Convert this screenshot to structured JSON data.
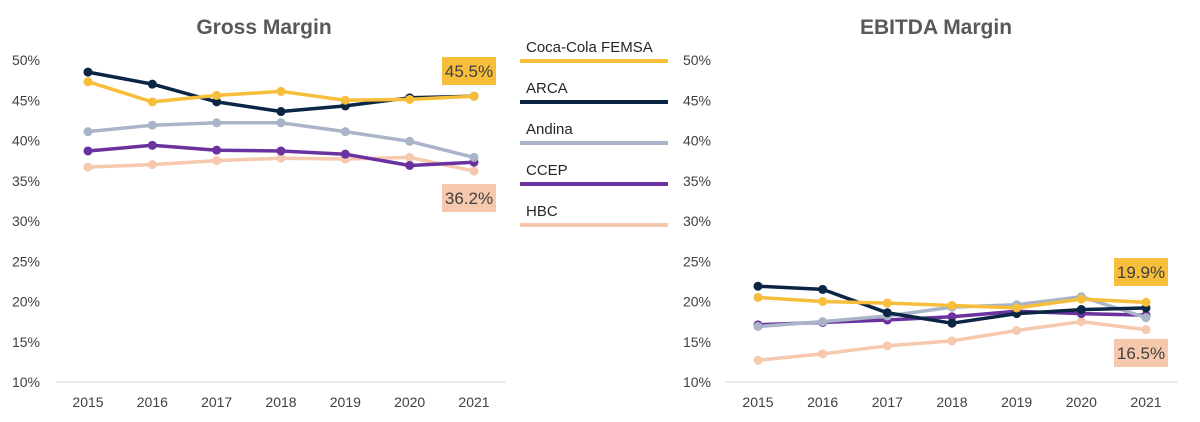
{
  "series_styles": [
    {
      "name": "Coca-Cola FEMSA",
      "color": "#F6BE3A"
    },
    {
      "name": "ARCA",
      "color": "#0B2545"
    },
    {
      "name": "Andina",
      "color": "#AAB4C8"
    },
    {
      "name": "CCEP",
      "color": "#6A329F"
    },
    {
      "name": "HBC",
      "color": "#F6C8AE"
    }
  ],
  "chart_data": [
    {
      "type": "line",
      "title": "Gross Margin",
      "categories": [
        "2015",
        "2016",
        "2017",
        "2018",
        "2019",
        "2020",
        "2021"
      ],
      "ylim": [
        10,
        50
      ],
      "yticks": [
        "10%",
        "15%",
        "20%",
        "25%",
        "30%",
        "35%",
        "40%",
        "45%",
        "50%"
      ],
      "series": [
        {
          "name": "Coca-Cola FEMSA",
          "values": [
            47.3,
            44.8,
            45.6,
            46.1,
            45.0,
            45.1,
            45.5
          ]
        },
        {
          "name": "ARCA",
          "values": [
            48.5,
            47.0,
            44.8,
            43.6,
            44.3,
            45.3,
            45.5
          ]
        },
        {
          "name": "Andina",
          "values": [
            41.1,
            41.9,
            42.2,
            42.2,
            41.1,
            39.9,
            37.9
          ]
        },
        {
          "name": "CCEP",
          "values": [
            38.7,
            39.4,
            38.8,
            38.7,
            38.3,
            36.9,
            37.3
          ]
        },
        {
          "name": "HBC",
          "values": [
            36.7,
            37.0,
            37.5,
            37.8,
            37.7,
            37.9,
            36.2
          ]
        }
      ],
      "annotations": [
        {
          "label": "45.5%",
          "series": "Coca-Cola FEMSA"
        },
        {
          "label": "36.2%",
          "series": "HBC"
        }
      ]
    },
    {
      "type": "line",
      "title": "EBITDA Margin",
      "categories": [
        "2015",
        "2016",
        "2017",
        "2018",
        "2019",
        "2020",
        "2021"
      ],
      "ylim": [
        10,
        50
      ],
      "yticks": [
        "10%",
        "15%",
        "20%",
        "25%",
        "30%",
        "35%",
        "40%",
        "45%",
        "50%"
      ],
      "series": [
        {
          "name": "Coca-Cola FEMSA",
          "values": [
            20.5,
            20.0,
            19.8,
            19.5,
            19.2,
            20.3,
            19.9
          ]
        },
        {
          "name": "ARCA",
          "values": [
            21.9,
            21.5,
            18.6,
            17.3,
            18.5,
            19.0,
            19.2
          ]
        },
        {
          "name": "Andina",
          "values": [
            16.9,
            17.5,
            18.2,
            19.3,
            19.6,
            20.6,
            18.0
          ]
        },
        {
          "name": "CCEP",
          "values": [
            17.1,
            17.4,
            17.7,
            18.1,
            18.8,
            18.5,
            18.3
          ]
        },
        {
          "name": "HBC",
          "values": [
            12.7,
            13.5,
            14.5,
            15.1,
            16.4,
            17.5,
            16.5
          ]
        }
      ],
      "annotations": [
        {
          "label": "19.9%",
          "series": "Coca-Cola FEMSA"
        },
        {
          "label": "16.5%",
          "series": "HBC"
        }
      ]
    }
  ]
}
